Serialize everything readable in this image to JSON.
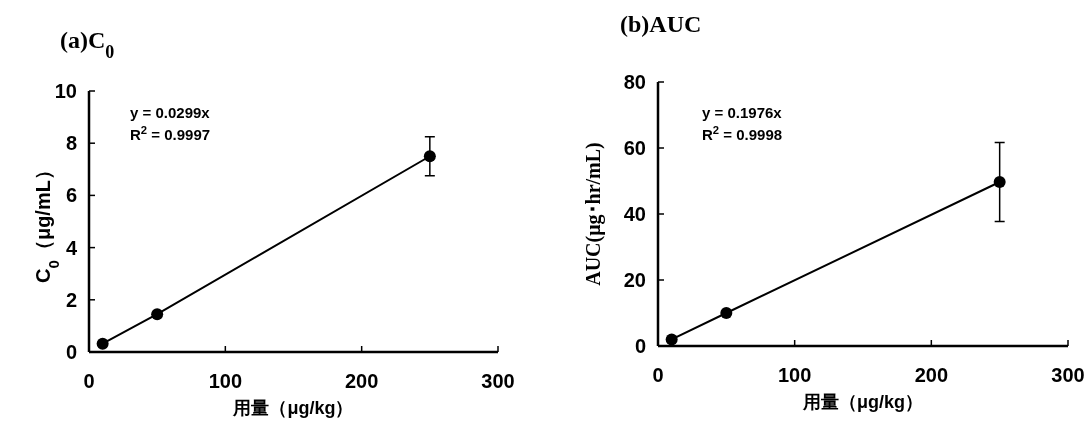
{
  "chart_data": [
    {
      "type": "line",
      "title": "(a)C$_{0}$",
      "xlabel": "用量（μg/kg）",
      "ylabel": "C$_{0}$（μg/mL）",
      "x": [
        10,
        50,
        250
      ],
      "series": [
        {
          "color": "#000000",
          "values": [
            0.32,
            1.45,
            7.5
          ],
          "errors": [
            null,
            null,
            0.75
          ]
        }
      ],
      "annotations": [
        "y = 0.0299x",
        "R$^{2}$ = 0.9997"
      ],
      "marker": "circle",
      "line_style": "solid",
      "xlim": [
        0,
        300
      ],
      "xticks": [
        0,
        100,
        200,
        300
      ],
      "ylim": [
        0,
        10
      ],
      "yticks": [
        0,
        2,
        4,
        6,
        8,
        10
      ]
    },
    {
      "type": "line",
      "title": "(b)AUC",
      "xlabel": "用量（μg/kg）",
      "ylabel": "AUC(μg･hr/mL)",
      "x": [
        10,
        50,
        250
      ],
      "series": [
        {
          "color": "#000000",
          "values": [
            2,
            10,
            49.7
          ],
          "errors": [
            null,
            null,
            12
          ]
        }
      ],
      "annotations": [
        "y = 0.1976x",
        "R$^{2}$ = 0.9998"
      ],
      "marker": "circle",
      "line_style": "solid",
      "xlim": [
        0,
        300
      ],
      "xticks": [
        0,
        100,
        200,
        300
      ],
      "ylim": [
        0,
        80
      ],
      "yticks": [
        0,
        20,
        40,
        60,
        80
      ]
    }
  ]
}
